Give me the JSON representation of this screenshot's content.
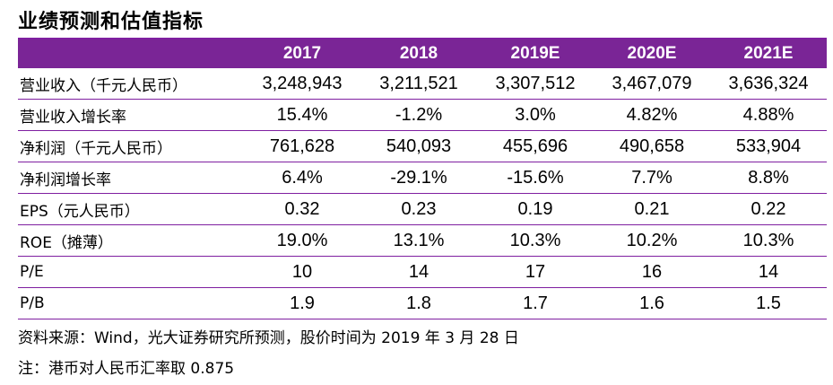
{
  "title": "业绩预测和估值指标",
  "table": {
    "corner": "",
    "columns": [
      "2017",
      "2018",
      "2019E",
      "2020E",
      "2021E"
    ],
    "rows": [
      {
        "label": "营业收入（千元人民币）",
        "values": [
          "3,248,943",
          "3,211,521",
          "3,307,512",
          "3,467,079",
          "3,636,324"
        ]
      },
      {
        "label": "营业收入增长率",
        "values": [
          "15.4%",
          "-1.2%",
          "3.0%",
          "4.82%",
          "4.88%"
        ]
      },
      {
        "label": "净利润（千元人民币）",
        "values": [
          "761,628",
          "540,093",
          "455,696",
          "490,658",
          "533,904"
        ]
      },
      {
        "label": "净利润增长率",
        "values": [
          "6.4%",
          "-29.1%",
          "-15.6%",
          "7.7%",
          "8.8%"
        ]
      },
      {
        "label": "EPS（元人民币）",
        "values": [
          "0.32",
          "0.23",
          "0.19",
          "0.21",
          "0.22"
        ]
      },
      {
        "label": "ROE（摊薄）",
        "values": [
          "19.0%",
          "13.1%",
          "10.3%",
          "10.2%",
          "10.3%"
        ]
      },
      {
        "label": "P/E",
        "values": [
          "10",
          "14",
          "17",
          "16",
          "14"
        ]
      },
      {
        "label": "P/B",
        "values": [
          "1.9",
          "1.8",
          "1.7",
          "1.6",
          "1.5"
        ]
      }
    ]
  },
  "notes": {
    "source": "资料来源：Wind，光大证券研究所预测，股价时间为 2019 年 3 月 28 日",
    "fx": "注：港币对人民币汇率取 0.875"
  },
  "colors": {
    "header_bg": "#7a2596",
    "rule": "#7f1fa0"
  }
}
